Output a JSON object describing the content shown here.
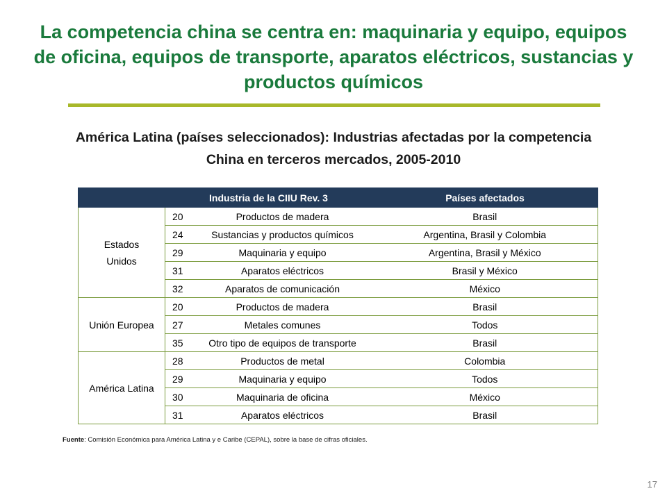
{
  "slide": {
    "title": "La competencia china se centra en: maquinaria y equipo, equipos de oficina, equipos de transporte, aparatos eléctricos, sustancias y productos químicos",
    "subtitle": "América Latina (países seleccionados): Industrias afectadas por la competencia China en terceros mercados, 2005-2010",
    "page_number": "17",
    "title_color": "#1a7a3c",
    "rule_color": "#a8b82a",
    "header_bg": "#233b5a"
  },
  "table": {
    "headers": [
      "",
      "Industria de la CIIU Rev. 3",
      "Países afectados"
    ],
    "groups": [
      {
        "region_line1": "Estados",
        "region_line2": "Unidos",
        "rows": [
          {
            "code": "20",
            "industry": "Productos de madera",
            "countries": "Brasil"
          },
          {
            "code": "24",
            "industry": "Sustancias y productos químicos",
            "countries": "Argentina, Brasil y Colombia"
          },
          {
            "code": "29",
            "industry": "Maquinaria y equipo",
            "countries": "Argentina, Brasil y México"
          },
          {
            "code": "31",
            "industry": "Aparatos eléctricos",
            "countries": "Brasil y México"
          },
          {
            "code": "32",
            "industry": "Aparatos de comunicación",
            "countries": "México"
          }
        ]
      },
      {
        "region_line1": "Unión Europea",
        "region_line2": "",
        "rows": [
          {
            "code": "20",
            "industry": "Productos de madera",
            "countries": "Brasil"
          },
          {
            "code": "27",
            "industry": "Metales comunes",
            "countries": "Todos"
          },
          {
            "code": "35",
            "industry": "Otro tipo de equipos de transporte",
            "countries": "Brasil"
          }
        ]
      },
      {
        "region_line1": "América Latina",
        "region_line2": "",
        "rows": [
          {
            "code": "28",
            "industry": "Productos de metal",
            "countries": "Colombia"
          },
          {
            "code": "29",
            "industry": "Maquinaria y equipo",
            "countries": "Todos"
          },
          {
            "code": "30",
            "industry": "Maquinaria de oficina",
            "countries": "México"
          },
          {
            "code": "31",
            "industry": "Aparatos eléctricos",
            "countries": "Brasil"
          }
        ]
      }
    ]
  },
  "source": {
    "label": "Fuente",
    "text": ": Comisión Económica para América Latina y e Caribe (CEPAL), sobre la base de cifras oficiales."
  }
}
